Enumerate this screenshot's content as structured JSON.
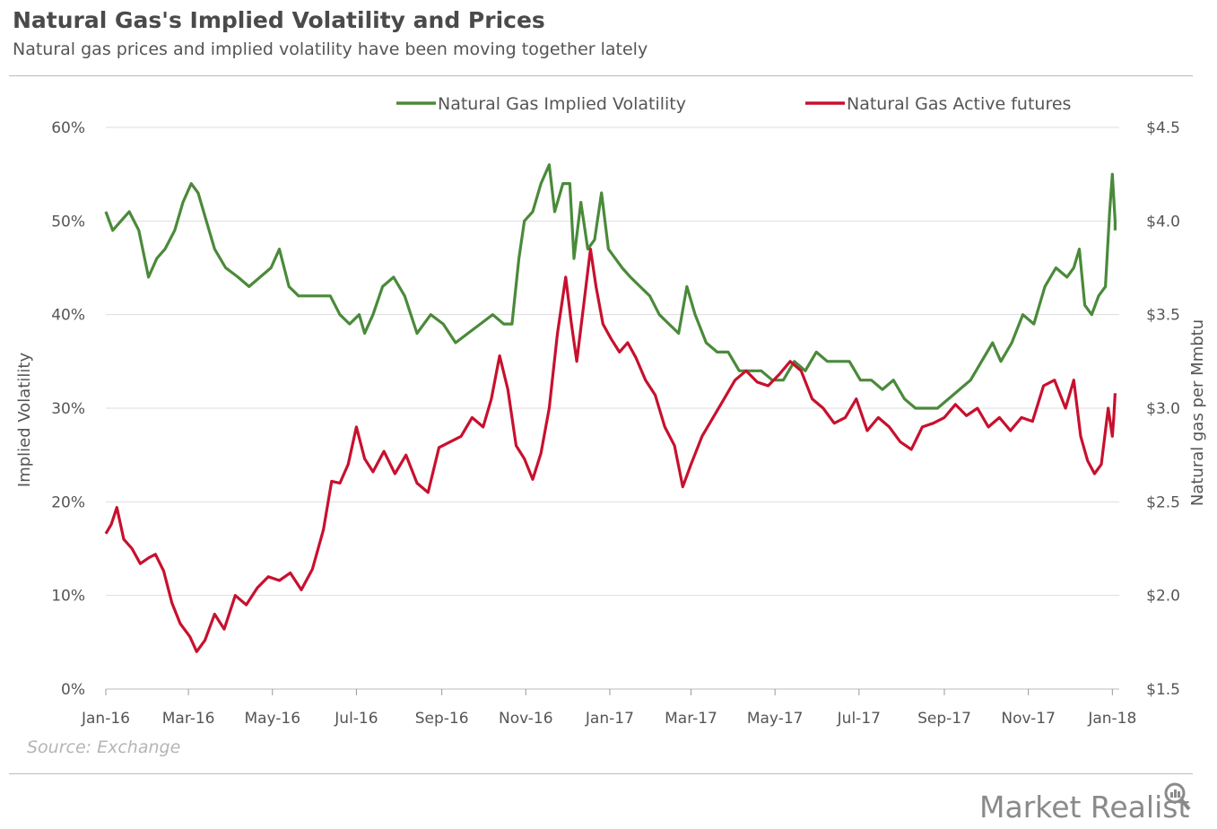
{
  "header": {
    "title": "Natural Gas's Implied Volatility and Prices",
    "subtitle": "Natural gas prices and implied volatility have been moving together lately"
  },
  "footer": {
    "source": "Source: Exchange",
    "brand": "Market Realist"
  },
  "colors": {
    "volatility": "#4a8a3a",
    "futures": "#c8102e",
    "grid": "#dddddd"
  },
  "chart_data": {
    "type": "line",
    "title": "Natural Gas's Implied Volatility and Prices",
    "subtitle": "Natural gas prices and implied volatility have been moving together lately",
    "ylabel_left": "Implied Volatility",
    "ylabel_right": "Natural gas per Mmbtu",
    "yleft_range": [
      0,
      60
    ],
    "yright_range": [
      1.5,
      4.5
    ],
    "yleft_ticks": [
      "0%",
      "10%",
      "20%",
      "30%",
      "40%",
      "50%",
      "60%"
    ],
    "yright_ticks": [
      "$1.5",
      "$2.0",
      "$2.5",
      "$3.0",
      "$3.5",
      "$4.0",
      "$4.5"
    ],
    "x_ticks": [
      "Jan-16",
      "Mar-16",
      "May-16",
      "Jul-16",
      "Sep-16",
      "Nov-16",
      "Jan-17",
      "Mar-17",
      "May-17",
      "Jul-17",
      "Sep-17",
      "Nov-17",
      "Jan-18"
    ],
    "x_range": [
      "2016-01-01",
      "2018-01-03"
    ],
    "grid": true,
    "legend_position": "top",
    "series": [
      {
        "name": "Natural Gas Implied Volatility",
        "axis": "left",
        "color": "#4a8a3a",
        "points": [
          [
            "2016-01-01",
            51
          ],
          [
            "2016-01-06",
            49
          ],
          [
            "2016-01-12",
            50
          ],
          [
            "2016-01-18",
            51
          ],
          [
            "2016-01-25",
            49
          ],
          [
            "2016-02-01",
            44
          ],
          [
            "2016-02-07",
            46
          ],
          [
            "2016-02-13",
            47
          ],
          [
            "2016-02-20",
            49
          ],
          [
            "2016-02-26",
            52
          ],
          [
            "2016-03-03",
            54
          ],
          [
            "2016-03-08",
            53
          ],
          [
            "2016-03-14",
            50
          ],
          [
            "2016-03-20",
            47
          ],
          [
            "2016-03-28",
            45
          ],
          [
            "2016-04-06",
            44
          ],
          [
            "2016-04-14",
            43
          ],
          [
            "2016-04-22",
            44
          ],
          [
            "2016-04-30",
            45
          ],
          [
            "2016-05-06",
            47
          ],
          [
            "2016-05-13",
            43
          ],
          [
            "2016-05-20",
            42
          ],
          [
            "2016-05-28",
            42
          ],
          [
            "2016-06-05",
            42
          ],
          [
            "2016-06-12",
            42
          ],
          [
            "2016-06-19",
            40
          ],
          [
            "2016-06-26",
            39
          ],
          [
            "2016-07-03",
            40
          ],
          [
            "2016-07-07",
            38
          ],
          [
            "2016-07-13",
            40
          ],
          [
            "2016-07-20",
            43
          ],
          [
            "2016-07-28",
            44
          ],
          [
            "2016-08-05",
            42
          ],
          [
            "2016-08-14",
            38
          ],
          [
            "2016-08-24",
            40
          ],
          [
            "2016-09-02",
            39
          ],
          [
            "2016-09-11",
            37
          ],
          [
            "2016-09-20",
            38
          ],
          [
            "2016-09-29",
            39
          ],
          [
            "2016-10-08",
            40
          ],
          [
            "2016-10-16",
            39
          ],
          [
            "2016-10-22",
            39
          ],
          [
            "2016-10-27",
            46
          ],
          [
            "2016-10-31",
            50
          ],
          [
            "2016-11-06",
            51
          ],
          [
            "2016-11-12",
            54
          ],
          [
            "2016-11-18",
            56
          ],
          [
            "2016-11-22",
            51
          ],
          [
            "2016-11-28",
            54
          ],
          [
            "2016-12-03",
            54
          ],
          [
            "2016-12-06",
            46
          ],
          [
            "2016-12-11",
            52
          ],
          [
            "2016-12-16",
            47
          ],
          [
            "2016-12-21",
            48
          ],
          [
            "2016-12-26",
            53
          ],
          [
            "2016-12-31",
            47
          ],
          [
            "2017-01-05",
            46
          ],
          [
            "2017-01-10",
            45
          ],
          [
            "2017-01-16",
            44
          ],
          [
            "2017-01-23",
            43
          ],
          [
            "2017-01-30",
            42
          ],
          [
            "2017-02-06",
            40
          ],
          [
            "2017-02-13",
            39
          ],
          [
            "2017-02-20",
            38
          ],
          [
            "2017-02-26",
            43
          ],
          [
            "2017-03-04",
            40
          ],
          [
            "2017-03-12",
            37
          ],
          [
            "2017-03-20",
            36
          ],
          [
            "2017-03-28",
            36
          ],
          [
            "2017-04-05",
            34
          ],
          [
            "2017-04-13",
            34
          ],
          [
            "2017-04-21",
            34
          ],
          [
            "2017-04-29",
            33
          ],
          [
            "2017-05-07",
            33
          ],
          [
            "2017-05-15",
            35
          ],
          [
            "2017-05-23",
            34
          ],
          [
            "2017-05-31",
            36
          ],
          [
            "2017-06-08",
            35
          ],
          [
            "2017-06-16",
            35
          ],
          [
            "2017-06-24",
            35
          ],
          [
            "2017-07-02",
            33
          ],
          [
            "2017-07-10",
            33
          ],
          [
            "2017-07-18",
            32
          ],
          [
            "2017-07-26",
            33
          ],
          [
            "2017-08-03",
            31
          ],
          [
            "2017-08-11",
            30
          ],
          [
            "2017-08-19",
            30
          ],
          [
            "2017-08-27",
            30
          ],
          [
            "2017-09-04",
            31
          ],
          [
            "2017-09-12",
            32
          ],
          [
            "2017-09-20",
            33
          ],
          [
            "2017-09-28",
            35
          ],
          [
            "2017-10-06",
            37
          ],
          [
            "2017-10-12",
            35
          ],
          [
            "2017-10-20",
            37
          ],
          [
            "2017-10-28",
            40
          ],
          [
            "2017-11-05",
            39
          ],
          [
            "2017-11-13",
            43
          ],
          [
            "2017-11-21",
            45
          ],
          [
            "2017-11-29",
            44
          ],
          [
            "2017-12-04",
            45
          ],
          [
            "2017-12-08",
            47
          ],
          [
            "2017-12-12",
            41
          ],
          [
            "2017-12-17",
            40
          ],
          [
            "2017-12-22",
            42
          ],
          [
            "2017-12-27",
            43
          ],
          [
            "2017-12-30",
            51
          ],
          [
            "2018-01-01",
            55
          ],
          [
            "2018-01-03",
            50
          ],
          [
            "2018-01-03",
            49
          ]
        ]
      },
      {
        "name": "Natural Gas Active futures",
        "axis": "right",
        "color": "#c8102e",
        "points": [
          [
            "2016-01-01",
            2.33
          ],
          [
            "2016-01-05",
            2.38
          ],
          [
            "2016-01-09",
            2.47
          ],
          [
            "2016-01-14",
            2.3
          ],
          [
            "2016-01-20",
            2.25
          ],
          [
            "2016-01-26",
            2.17
          ],
          [
            "2016-02-01",
            2.2
          ],
          [
            "2016-02-06",
            2.22
          ],
          [
            "2016-02-12",
            2.13
          ],
          [
            "2016-02-18",
            1.96
          ],
          [
            "2016-02-24",
            1.85
          ],
          [
            "2016-03-02",
            1.78
          ],
          [
            "2016-03-07",
            1.7
          ],
          [
            "2016-03-13",
            1.76
          ],
          [
            "2016-03-20",
            1.9
          ],
          [
            "2016-03-27",
            1.82
          ],
          [
            "2016-04-04",
            2.0
          ],
          [
            "2016-04-12",
            1.95
          ],
          [
            "2016-04-20",
            2.04
          ],
          [
            "2016-04-28",
            2.1
          ],
          [
            "2016-05-06",
            2.08
          ],
          [
            "2016-05-14",
            2.12
          ],
          [
            "2016-05-22",
            2.03
          ],
          [
            "2016-05-30",
            2.14
          ],
          [
            "2016-06-07",
            2.35
          ],
          [
            "2016-06-13",
            2.61
          ],
          [
            "2016-06-19",
            2.6
          ],
          [
            "2016-06-25",
            2.7
          ],
          [
            "2016-07-01",
            2.9
          ],
          [
            "2016-07-07",
            2.73
          ],
          [
            "2016-07-13",
            2.66
          ],
          [
            "2016-07-21",
            2.77
          ],
          [
            "2016-07-29",
            2.65
          ],
          [
            "2016-08-06",
            2.75
          ],
          [
            "2016-08-14",
            2.6
          ],
          [
            "2016-08-22",
            2.55
          ],
          [
            "2016-08-30",
            2.79
          ],
          [
            "2016-09-07",
            2.82
          ],
          [
            "2016-09-15",
            2.85
          ],
          [
            "2016-09-23",
            2.95
          ],
          [
            "2016-10-01",
            2.9
          ],
          [
            "2016-10-07",
            3.05
          ],
          [
            "2016-10-13",
            3.28
          ],
          [
            "2016-10-19",
            3.1
          ],
          [
            "2016-10-25",
            2.8
          ],
          [
            "2016-10-31",
            2.73
          ],
          [
            "2016-11-06",
            2.62
          ],
          [
            "2016-11-12",
            2.76
          ],
          [
            "2016-11-18",
            3.0
          ],
          [
            "2016-11-24",
            3.4
          ],
          [
            "2016-11-30",
            3.7
          ],
          [
            "2016-12-04",
            3.46
          ],
          [
            "2016-12-08",
            3.25
          ],
          [
            "2016-12-13",
            3.55
          ],
          [
            "2016-12-18",
            3.85
          ],
          [
            "2016-12-22",
            3.65
          ],
          [
            "2016-12-27",
            3.45
          ],
          [
            "2017-01-02",
            3.37
          ],
          [
            "2017-01-08",
            3.3
          ],
          [
            "2017-01-14",
            3.35
          ],
          [
            "2017-01-20",
            3.27
          ],
          [
            "2017-01-27",
            3.15
          ],
          [
            "2017-02-03",
            3.07
          ],
          [
            "2017-02-10",
            2.9
          ],
          [
            "2017-02-17",
            2.8
          ],
          [
            "2017-02-23",
            2.58
          ],
          [
            "2017-03-01",
            2.7
          ],
          [
            "2017-03-09",
            2.85
          ],
          [
            "2017-03-17",
            2.95
          ],
          [
            "2017-03-25",
            3.05
          ],
          [
            "2017-04-02",
            3.15
          ],
          [
            "2017-04-10",
            3.2
          ],
          [
            "2017-04-18",
            3.14
          ],
          [
            "2017-04-26",
            3.12
          ],
          [
            "2017-05-04",
            3.18
          ],
          [
            "2017-05-12",
            3.25
          ],
          [
            "2017-05-20",
            3.2
          ],
          [
            "2017-05-28",
            3.05
          ],
          [
            "2017-06-05",
            3.0
          ],
          [
            "2017-06-13",
            2.92
          ],
          [
            "2017-06-21",
            2.95
          ],
          [
            "2017-06-29",
            3.05
          ],
          [
            "2017-07-07",
            2.88
          ],
          [
            "2017-07-15",
            2.95
          ],
          [
            "2017-07-23",
            2.9
          ],
          [
            "2017-07-31",
            2.82
          ],
          [
            "2017-08-08",
            2.78
          ],
          [
            "2017-08-16",
            2.9
          ],
          [
            "2017-08-24",
            2.92
          ],
          [
            "2017-09-01",
            2.95
          ],
          [
            "2017-09-09",
            3.02
          ],
          [
            "2017-09-17",
            2.96
          ],
          [
            "2017-09-25",
            3.0
          ],
          [
            "2017-10-03",
            2.9
          ],
          [
            "2017-10-11",
            2.95
          ],
          [
            "2017-10-19",
            2.88
          ],
          [
            "2017-10-27",
            2.95
          ],
          [
            "2017-11-04",
            2.93
          ],
          [
            "2017-11-12",
            3.12
          ],
          [
            "2017-11-20",
            3.15
          ],
          [
            "2017-11-28",
            3.0
          ],
          [
            "2017-12-04",
            3.15
          ],
          [
            "2017-12-09",
            2.85
          ],
          [
            "2017-12-14",
            2.72
          ],
          [
            "2017-12-19",
            2.65
          ],
          [
            "2017-12-24",
            2.7
          ],
          [
            "2017-12-29",
            3.0
          ],
          [
            "2018-01-01",
            2.85
          ],
          [
            "2018-01-02",
            2.95
          ],
          [
            "2018-01-03",
            3.08
          ]
        ]
      }
    ]
  }
}
